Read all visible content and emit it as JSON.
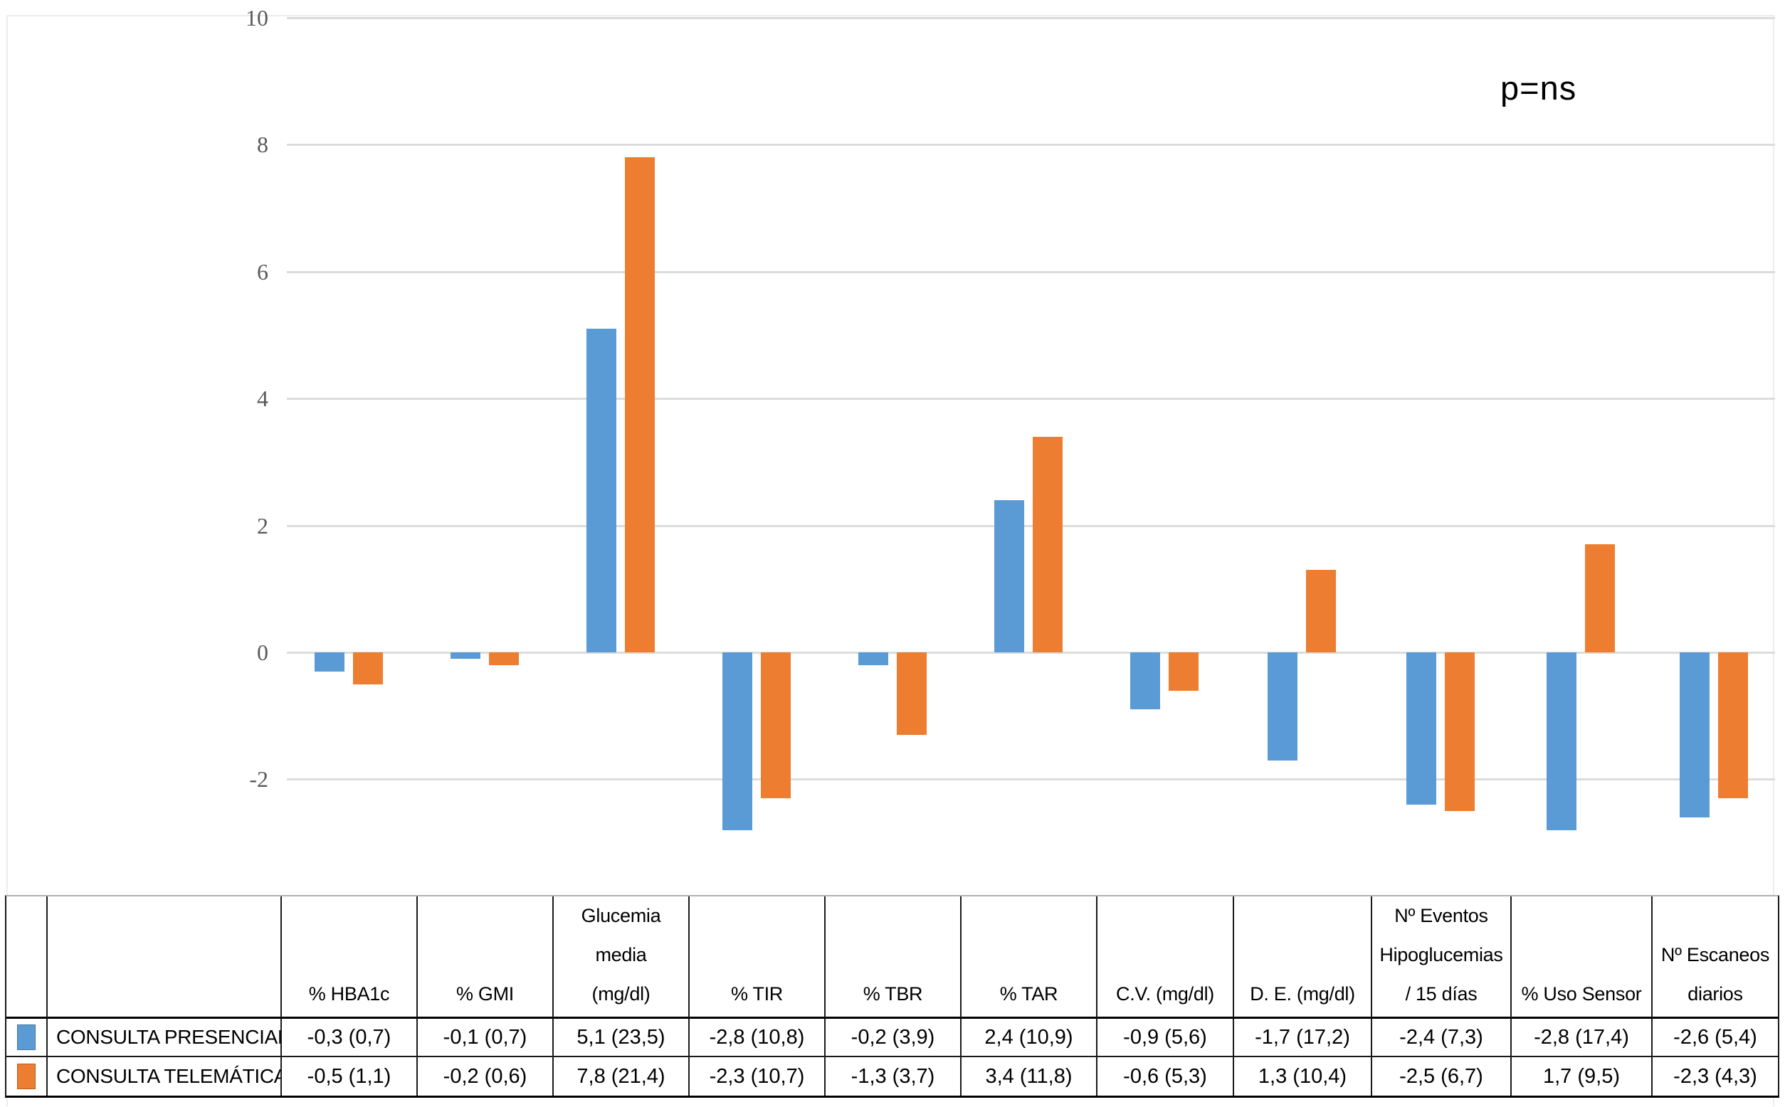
{
  "chart_data": {
    "type": "bar",
    "title": "",
    "annotation": "p=ns",
    "categories": [
      "% HBA1c",
      "% GMI",
      "Glucemia media (mg/dl)",
      "% TIR",
      "% TBR",
      "% TAR",
      "C.V. (mg/dl)",
      "D. E. (mg/dl)",
      "Nº Eventos Hipoglucemias / 15 días",
      "% Uso Sensor",
      "Nº Escaneos diarios"
    ],
    "series": [
      {
        "name": "CONSULTA PRESENCIAL",
        "color": "#5B9BD5",
        "values": [
          -0.3,
          -0.1,
          5.1,
          -2.8,
          -0.2,
          2.4,
          -0.9,
          -1.7,
          -2.4,
          -2.8,
          -2.6
        ]
      },
      {
        "name": "CONSULTA TELEMÁTICA",
        "color": "#ED7D31",
        "values": [
          -0.5,
          -0.2,
          7.8,
          -2.3,
          -1.3,
          3.4,
          -0.6,
          1.3,
          -2.5,
          1.7,
          -2.3
        ]
      }
    ],
    "y_ticks": [
      10,
      8,
      6,
      4,
      2,
      0,
      -2
    ],
    "ylim": [
      -3.9,
      10
    ],
    "grid": true,
    "gridline_color": "#dcdcdc",
    "tick_color": "#595959",
    "legend_position": "table-left"
  },
  "table": {
    "column_headers": [
      [
        "% HBA1c"
      ],
      [
        "% GMI"
      ],
      [
        "Glucemia",
        "media",
        "(mg/dl)"
      ],
      [
        "% TIR"
      ],
      [
        "% TBR"
      ],
      [
        "% TAR"
      ],
      [
        "C.V. (mg/dl)"
      ],
      [
        "D. E. (mg/dl)"
      ],
      [
        "Nº Eventos",
        "Hipoglucemias",
        "/ 15 días"
      ],
      [
        "% Uso Sensor"
      ],
      [
        "Nº Escaneos",
        "diarios"
      ]
    ],
    "rows": [
      {
        "label": "CONSULTA PRESENCIAL",
        "swatch_color": "#5B9BD5",
        "cells": [
          "-0,3 (0,7)",
          "-0,1 (0,7)",
          "5,1 (23,5)",
          "-2,8 (10,8)",
          "-0,2 (3,9)",
          "2,4 (10,9)",
          "-0,9 (5,6)",
          "-1,7 (17,2)",
          "-2,4 (7,3)",
          "-2,8 (17,4)",
          "-2,6 (5,4)"
        ]
      },
      {
        "label": "CONSULTA TELEMÁTICA",
        "swatch_color": "#ED7D31",
        "cells": [
          "-0,5 (1,1)",
          "-0,2 (0,6)",
          "7,8 (21,4)",
          "-2,3 (10,7)",
          "-1,3 (3,7)",
          "3,4 (11,8)",
          "-0,6 (5,3)",
          "1,3 (10,4)",
          "-2,5 (6,7)",
          "1,7 (9,5)",
          "-2,3 (4,3)"
        ]
      }
    ]
  }
}
